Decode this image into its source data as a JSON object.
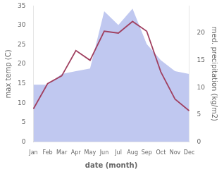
{
  "chart_data": {
    "type": "line",
    "categories": [
      "Jan",
      "Feb",
      "Mar",
      "Apr",
      "May",
      "Jun",
      "Jul",
      "Aug",
      "Sep",
      "Oct",
      "Nov",
      "Dec"
    ],
    "series": [
      {
        "color": "#a04060",
        "values": [
          8.5,
          15.0,
          17.0,
          23.5,
          21.0,
          28.5,
          28.0,
          31.0,
          28.5,
          18.0,
          11.0,
          8.0
        ]
      },
      {
        "type": "area",
        "axis": "y2",
        "color": "#c0c8f0",
        "values": [
          10.5,
          10.5,
          12.5,
          13.0,
          13.5,
          24.0,
          21.5,
          24.5,
          18.0,
          15.0,
          13.0,
          12.5
        ]
      }
    ],
    "xlabel": "date (month)",
    "ylabel": "max temp (C)",
    "y2label": "med. precipitation (kg/m2)",
    "ylim": [
      0,
      35
    ],
    "yticks": [
      0,
      5,
      10,
      15,
      20,
      25,
      30,
      35
    ],
    "y2lim": [
      0,
      25
    ],
    "y2ticks": [
      0,
      5,
      10,
      15,
      20
    ],
    "grid": false
  }
}
